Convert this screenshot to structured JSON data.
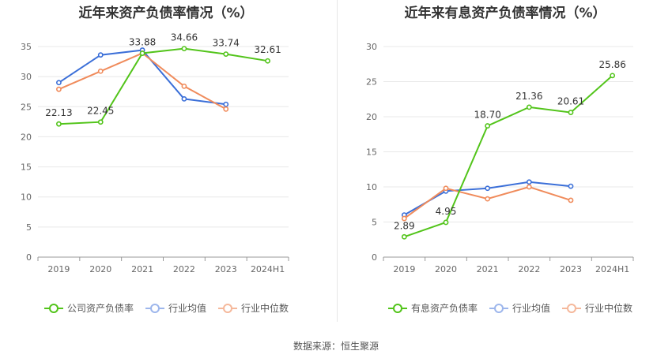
{
  "colors": {
    "company": "#52c41a",
    "industry_avg": "#3b6fd8",
    "industry_median": "#f08b5b"
  },
  "source_label": "数据来源：恒生聚源",
  "chart_data": [
    {
      "type": "line",
      "title": "近年来资产负债率情况（%）",
      "categories": [
        "2019",
        "2020",
        "2021",
        "2022",
        "2023",
        "2024H1"
      ],
      "ylim": [
        0,
        35
      ],
      "yticks": [
        0,
        5,
        10,
        15,
        20,
        25,
        30,
        35
      ],
      "grid": true,
      "legend_position": "bottom",
      "series": [
        {
          "name": "公司资产负债率",
          "color": "#52c41a",
          "values": [
            22.13,
            22.45,
            33.88,
            34.66,
            33.74,
            32.61
          ],
          "labels": [
            "22.13",
            "22.45",
            "33.88",
            "34.66",
            "33.74",
            "32.61"
          ]
        },
        {
          "name": "行业均值",
          "color": "#3b6fd8",
          "values": [
            29.0,
            33.6,
            34.4,
            26.3,
            25.4,
            null
          ]
        },
        {
          "name": "行业中位数",
          "color": "#f08b5b",
          "values": [
            27.9,
            30.9,
            33.9,
            28.4,
            24.6,
            null
          ]
        }
      ]
    },
    {
      "type": "line",
      "title": "近年来有息资产负债率情况（%）",
      "categories": [
        "2019",
        "2020",
        "2021",
        "2022",
        "2023",
        "2024H1"
      ],
      "ylim": [
        0,
        30
      ],
      "yticks": [
        0,
        5,
        10,
        15,
        20,
        25,
        30
      ],
      "grid": true,
      "legend_position": "bottom",
      "series": [
        {
          "name": "有息资产负债率",
          "color": "#52c41a",
          "values": [
            2.89,
            4.95,
            18.7,
            21.36,
            20.61,
            25.86
          ],
          "labels": [
            "2.89",
            "4.95",
            "18.70",
            "21.36",
            "20.61",
            "25.86"
          ]
        },
        {
          "name": "行业均值",
          "color": "#3b6fd8",
          "values": [
            6.0,
            9.4,
            9.8,
            10.7,
            10.1,
            null
          ]
        },
        {
          "name": "行业中位数",
          "color": "#f08b5b",
          "values": [
            5.5,
            9.8,
            8.3,
            10.0,
            8.1,
            null
          ]
        }
      ]
    }
  ]
}
